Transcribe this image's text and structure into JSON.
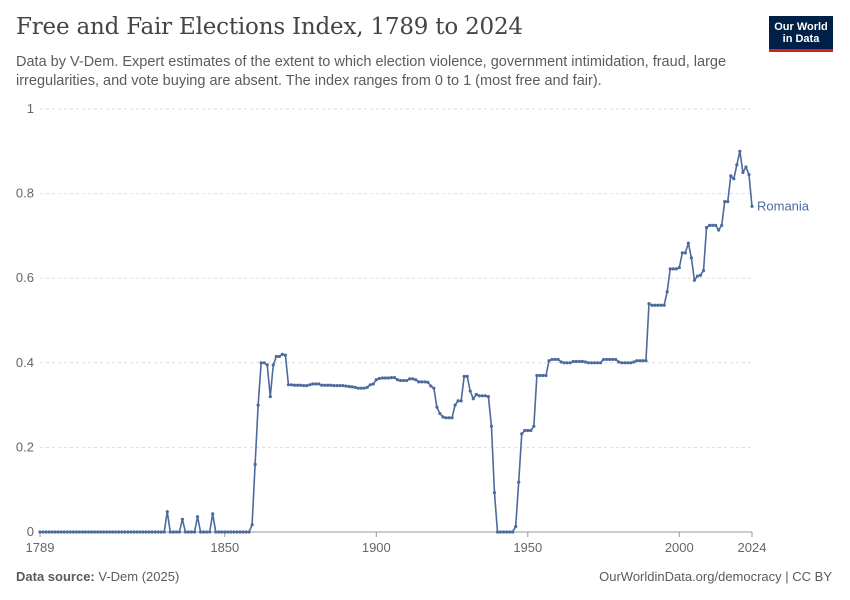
{
  "title": "Free and Fair Elections Index, 1789 to 2024",
  "subtitle": "Data by V-Dem. Expert estimates of the extent to which election violence, government intimidation, fraud, large irregularities, and vote buying are absent. The index ranges from 0 to 1 (most free and fair).",
  "logo": {
    "line1": "Our World",
    "line2": "in Data"
  },
  "footer": {
    "source_label": "Data source:",
    "source_value": "V-Dem (2025)",
    "right": "OurWorldinData.org/democracy | CC BY"
  },
  "colors": {
    "series": "#4c6a9c",
    "grid": "#dddddd",
    "logo_bg": "#002147",
    "logo_accent": "#ce261e"
  },
  "chart_data": {
    "type": "line",
    "xlim": [
      1789,
      2024
    ],
    "ylim": [
      0,
      1
    ],
    "x_ticks": [
      1789,
      1850,
      1900,
      1950,
      2000,
      2024
    ],
    "y_ticks": [
      0,
      0.2,
      0.4,
      0.6,
      0.8,
      1
    ],
    "y_tick_labels": [
      "0",
      "0.2",
      "0.4",
      "0.6",
      "0.8",
      "1"
    ],
    "grid": "horizontal-dashed",
    "series": [
      {
        "name": "Romania",
        "points": [
          [
            1789,
            0
          ],
          [
            1790,
            0
          ],
          [
            1791,
            0
          ],
          [
            1792,
            0
          ],
          [
            1793,
            0
          ],
          [
            1794,
            0
          ],
          [
            1795,
            0
          ],
          [
            1796,
            0
          ],
          [
            1797,
            0
          ],
          [
            1798,
            0
          ],
          [
            1799,
            0
          ],
          [
            1800,
            0
          ],
          [
            1801,
            0
          ],
          [
            1802,
            0
          ],
          [
            1803,
            0
          ],
          [
            1804,
            0
          ],
          [
            1805,
            0
          ],
          [
            1806,
            0
          ],
          [
            1807,
            0
          ],
          [
            1808,
            0
          ],
          [
            1809,
            0
          ],
          [
            1810,
            0
          ],
          [
            1811,
            0
          ],
          [
            1812,
            0
          ],
          [
            1813,
            0
          ],
          [
            1814,
            0
          ],
          [
            1815,
            0
          ],
          [
            1816,
            0
          ],
          [
            1817,
            0
          ],
          [
            1818,
            0
          ],
          [
            1819,
            0
          ],
          [
            1820,
            0
          ],
          [
            1821,
            0
          ],
          [
            1822,
            0
          ],
          [
            1823,
            0
          ],
          [
            1824,
            0
          ],
          [
            1825,
            0
          ],
          [
            1826,
            0
          ],
          [
            1827,
            0
          ],
          [
            1828,
            0
          ],
          [
            1829,
            0
          ],
          [
            1830,
            0
          ],
          [
            1831,
            0.048
          ],
          [
            1832,
            0
          ],
          [
            1833,
            0
          ],
          [
            1834,
            0
          ],
          [
            1835,
            0
          ],
          [
            1836,
            0.03
          ],
          [
            1837,
            0
          ],
          [
            1838,
            0
          ],
          [
            1839,
            0
          ],
          [
            1840,
            0
          ],
          [
            1841,
            0.036
          ],
          [
            1842,
            0
          ],
          [
            1843,
            0
          ],
          [
            1844,
            0
          ],
          [
            1845,
            0
          ],
          [
            1846,
            0.043
          ],
          [
            1847,
            0
          ],
          [
            1848,
            0
          ],
          [
            1849,
            0
          ],
          [
            1850,
            0
          ],
          [
            1851,
            0
          ],
          [
            1852,
            0
          ],
          [
            1853,
            0
          ],
          [
            1854,
            0
          ],
          [
            1855,
            0
          ],
          [
            1856,
            0
          ],
          [
            1857,
            0
          ],
          [
            1858,
            0
          ],
          [
            1859,
            0.017
          ],
          [
            1860,
            0.16
          ],
          [
            1861,
            0.3
          ],
          [
            1862,
            0.4
          ],
          [
            1863,
            0.4
          ],
          [
            1864,
            0.395
          ],
          [
            1865,
            0.32
          ],
          [
            1866,
            0.395
          ],
          [
            1867,
            0.415
          ],
          [
            1868,
            0.415
          ],
          [
            1869,
            0.42
          ],
          [
            1870,
            0.418
          ],
          [
            1871,
            0.348
          ],
          [
            1872,
            0.348
          ],
          [
            1873,
            0.347
          ],
          [
            1874,
            0.347
          ],
          [
            1875,
            0.347
          ],
          [
            1876,
            0.346
          ],
          [
            1877,
            0.346
          ],
          [
            1878,
            0.348
          ],
          [
            1879,
            0.35
          ],
          [
            1880,
            0.35
          ],
          [
            1881,
            0.35
          ],
          [
            1882,
            0.347
          ],
          [
            1883,
            0.347
          ],
          [
            1884,
            0.347
          ],
          [
            1885,
            0.347
          ],
          [
            1886,
            0.346
          ],
          [
            1887,
            0.346
          ],
          [
            1888,
            0.346
          ],
          [
            1889,
            0.346
          ],
          [
            1890,
            0.345
          ],
          [
            1891,
            0.344
          ],
          [
            1892,
            0.343
          ],
          [
            1893,
            0.342
          ],
          [
            1894,
            0.34
          ],
          [
            1895,
            0.34
          ],
          [
            1896,
            0.34
          ],
          [
            1897,
            0.342
          ],
          [
            1898,
            0.348
          ],
          [
            1899,
            0.35
          ],
          [
            1900,
            0.36
          ],
          [
            1901,
            0.363
          ],
          [
            1902,
            0.364
          ],
          [
            1903,
            0.364
          ],
          [
            1904,
            0.364
          ],
          [
            1905,
            0.365
          ],
          [
            1906,
            0.365
          ],
          [
            1907,
            0.36
          ],
          [
            1908,
            0.358
          ],
          [
            1909,
            0.358
          ],
          [
            1910,
            0.358
          ],
          [
            1911,
            0.362
          ],
          [
            1912,
            0.362
          ],
          [
            1913,
            0.36
          ],
          [
            1914,
            0.355
          ],
          [
            1915,
            0.355
          ],
          [
            1916,
            0.355
          ],
          [
            1917,
            0.354
          ],
          [
            1918,
            0.345
          ],
          [
            1919,
            0.34
          ],
          [
            1920,
            0.295
          ],
          [
            1921,
            0.28
          ],
          [
            1922,
            0.272
          ],
          [
            1923,
            0.27
          ],
          [
            1924,
            0.27
          ],
          [
            1925,
            0.27
          ],
          [
            1926,
            0.3
          ],
          [
            1927,
            0.31
          ],
          [
            1928,
            0.31
          ],
          [
            1929,
            0.368
          ],
          [
            1930,
            0.368
          ],
          [
            1931,
            0.333
          ],
          [
            1932,
            0.315
          ],
          [
            1933,
            0.325
          ],
          [
            1934,
            0.322
          ],
          [
            1935,
            0.322
          ],
          [
            1936,
            0.322
          ],
          [
            1937,
            0.32
          ],
          [
            1938,
            0.25
          ],
          [
            1939,
            0.093
          ],
          [
            1940,
            0
          ],
          [
            1941,
            0
          ],
          [
            1942,
            0
          ],
          [
            1943,
            0
          ],
          [
            1944,
            0
          ],
          [
            1945,
            0
          ],
          [
            1946,
            0.013
          ],
          [
            1947,
            0.118
          ],
          [
            1948,
            0.232
          ],
          [
            1949,
            0.24
          ],
          [
            1950,
            0.24
          ],
          [
            1951,
            0.24
          ],
          [
            1952,
            0.25
          ],
          [
            1953,
            0.37
          ],
          [
            1954,
            0.37
          ],
          [
            1955,
            0.37
          ],
          [
            1956,
            0.37
          ],
          [
            1957,
            0.405
          ],
          [
            1958,
            0.408
          ],
          [
            1959,
            0.408
          ],
          [
            1960,
            0.408
          ],
          [
            1961,
            0.402
          ],
          [
            1962,
            0.4
          ],
          [
            1963,
            0.4
          ],
          [
            1964,
            0.4
          ],
          [
            1965,
            0.403
          ],
          [
            1966,
            0.403
          ],
          [
            1967,
            0.403
          ],
          [
            1968,
            0.403
          ],
          [
            1969,
            0.402
          ],
          [
            1970,
            0.4
          ],
          [
            1971,
            0.4
          ],
          [
            1972,
            0.4
          ],
          [
            1973,
            0.4
          ],
          [
            1974,
            0.4
          ],
          [
            1975,
            0.408
          ],
          [
            1976,
            0.408
          ],
          [
            1977,
            0.408
          ],
          [
            1978,
            0.408
          ],
          [
            1979,
            0.408
          ],
          [
            1980,
            0.402
          ],
          [
            1981,
            0.4
          ],
          [
            1982,
            0.4
          ],
          [
            1983,
            0.4
          ],
          [
            1984,
            0.4
          ],
          [
            1985,
            0.402
          ],
          [
            1986,
            0.405
          ],
          [
            1987,
            0.405
          ],
          [
            1988,
            0.405
          ],
          [
            1989,
            0.405
          ],
          [
            1990,
            0.54
          ],
          [
            1991,
            0.536
          ],
          [
            1992,
            0.536
          ],
          [
            1993,
            0.536
          ],
          [
            1994,
            0.536
          ],
          [
            1995,
            0.536
          ],
          [
            1996,
            0.568
          ],
          [
            1997,
            0.622
          ],
          [
            1998,
            0.622
          ],
          [
            1999,
            0.622
          ],
          [
            2000,
            0.625
          ],
          [
            2001,
            0.66
          ],
          [
            2002,
            0.66
          ],
          [
            2003,
            0.683
          ],
          [
            2004,
            0.648
          ],
          [
            2005,
            0.595
          ],
          [
            2006,
            0.605
          ],
          [
            2007,
            0.607
          ],
          [
            2008,
            0.618
          ],
          [
            2009,
            0.72
          ],
          [
            2010,
            0.725
          ],
          [
            2011,
            0.725
          ],
          [
            2012,
            0.725
          ],
          [
            2013,
            0.714
          ],
          [
            2014,
            0.725
          ],
          [
            2015,
            0.781
          ],
          [
            2016,
            0.781
          ],
          [
            2017,
            0.842
          ],
          [
            2018,
            0.835
          ],
          [
            2019,
            0.868
          ],
          [
            2020,
            0.9
          ],
          [
            2021,
            0.85
          ],
          [
            2022,
            0.863
          ],
          [
            2023,
            0.845
          ],
          [
            2024,
            0.77
          ]
        ]
      }
    ]
  }
}
